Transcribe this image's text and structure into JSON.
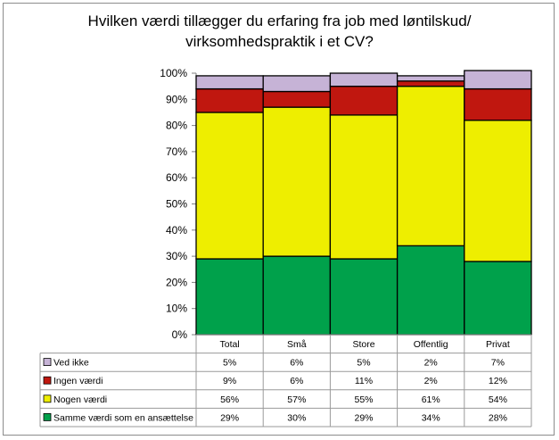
{
  "chart_data": {
    "type": "bar",
    "stacked": true,
    "title_lines": [
      "Hvilken værdi tillægger du erfaring fra job med løntilskud/",
      "virksomhedspraktik i et CV?"
    ],
    "categories": [
      "Total",
      "Små",
      "Store",
      "Offentlig",
      "Privat"
    ],
    "series": [
      {
        "name": "Samme værdi som en ansættelse",
        "color": "#00a14b",
        "values": [
          29,
          30,
          29,
          34,
          28
        ],
        "labels": [
          "29%",
          "30%",
          "29%",
          "34%",
          "28%"
        ]
      },
      {
        "name": "Nogen værdi",
        "color": "#eeee00",
        "values": [
          56,
          57,
          55,
          61,
          54
        ],
        "labels": [
          "56%",
          "57%",
          "55%",
          "61%",
          "54%"
        ]
      },
      {
        "name": "Ingen værdi",
        "color": "#c0170f",
        "values": [
          9,
          6,
          11,
          2,
          12
        ],
        "labels": [
          "9%",
          "6%",
          "11%",
          "2%",
          "12%"
        ]
      },
      {
        "name": "Ved ikke",
        "color": "#c6b3d6",
        "values": [
          5,
          6,
          5,
          2,
          7
        ],
        "labels": [
          "5%",
          "6%",
          "5%",
          "2%",
          "7%"
        ]
      }
    ],
    "yticks": [
      "0%",
      "10%",
      "20%",
      "30%",
      "40%",
      "50%",
      "60%",
      "70%",
      "80%",
      "90%",
      "100%"
    ],
    "ylim": [
      0,
      100
    ],
    "grid": false,
    "legend": "data-table-below"
  }
}
